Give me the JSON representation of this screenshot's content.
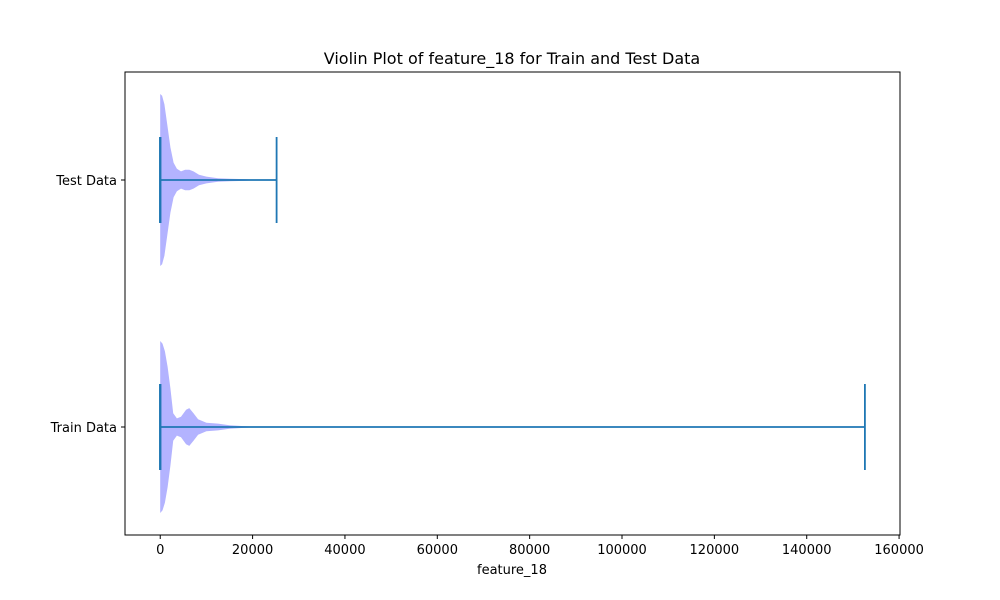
{
  "chart_data": {
    "type": "violin",
    "orientation": "horizontal",
    "title": "Violin Plot of feature_18 for Train and Test Data",
    "xlabel": "feature_18",
    "ylabel": "",
    "xlim": [
      -7630,
      160200
    ],
    "x_ticks": [
      0,
      20000,
      40000,
      60000,
      80000,
      100000,
      120000,
      140000,
      160000
    ],
    "x_tick_labels": [
      "0",
      "20000",
      "40000",
      "60000",
      "80000",
      "100000",
      "120000",
      "140000",
      "160000"
    ],
    "categories": [
      "Train Data",
      "Test Data"
    ],
    "grid": false,
    "colors": {
      "violin_fill": "#b3b3ff",
      "lines": "#1f77b4",
      "axes": "#000000"
    },
    "series": [
      {
        "category": "Train Data",
        "min": 0,
        "max": 152600,
        "density": [
          [
            0,
            1.0
          ],
          [
            500,
            0.97
          ],
          [
            1000,
            0.88
          ],
          [
            1600,
            0.7
          ],
          [
            2200,
            0.45
          ],
          [
            2800,
            0.16
          ],
          [
            3600,
            0.1
          ],
          [
            4500,
            0.12
          ],
          [
            5600,
            0.2
          ],
          [
            6300,
            0.22
          ],
          [
            7200,
            0.16
          ],
          [
            8200,
            0.09
          ],
          [
            10000,
            0.05
          ],
          [
            12500,
            0.04
          ],
          [
            15000,
            0.02
          ],
          [
            18000,
            0.01
          ],
          [
            21000,
            0.002
          ],
          [
            24000,
            0.0
          ]
        ]
      },
      {
        "category": "Test Data",
        "min": 0,
        "max": 25200,
        "density": [
          [
            0,
            1.0
          ],
          [
            400,
            0.98
          ],
          [
            900,
            0.88
          ],
          [
            1500,
            0.65
          ],
          [
            2200,
            0.38
          ],
          [
            2900,
            0.2
          ],
          [
            3600,
            0.13
          ],
          [
            4500,
            0.1
          ],
          [
            5400,
            0.12
          ],
          [
            6300,
            0.12
          ],
          [
            7200,
            0.1
          ],
          [
            8400,
            0.06
          ],
          [
            10000,
            0.04
          ],
          [
            12500,
            0.02
          ],
          [
            15000,
            0.015
          ],
          [
            18000,
            0.01
          ],
          [
            20500,
            0.004
          ],
          [
            23000,
            0.0
          ]
        ]
      }
    ]
  }
}
